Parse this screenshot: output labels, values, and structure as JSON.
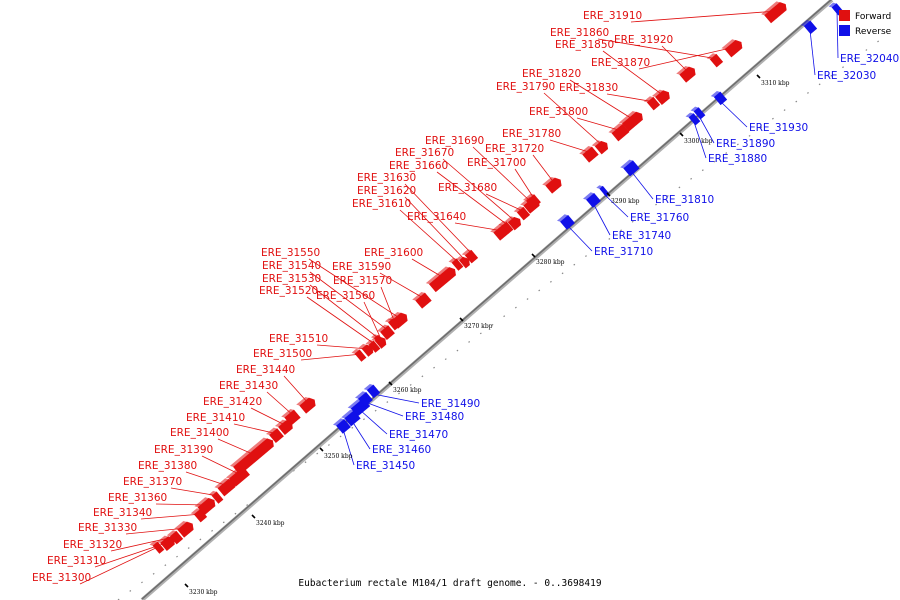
{
  "colors": {
    "forward": "#e01010",
    "reverse": "#1010e8"
  },
  "legend": {
    "forward_label": "Forward",
    "reverse_label": "Reverse"
  },
  "caption": "Eubacterium rectale M104/1 draft genome. - 0..3698419",
  "ticks": [
    "3230 kbp",
    "3240 kbp",
    "3250 kbp",
    "3260 kbp",
    "3270 kbp",
    "3280 kbp",
    "3290 kbp",
    "3300 kbp",
    "3310 kbp"
  ],
  "forward_genes": [
    "ERE_31300",
    "ERE_31310",
    "ERE_31320",
    "ERE_31330",
    "ERE_31340",
    "ERE_31360",
    "ERE_31370",
    "ERE_31380",
    "ERE_31390",
    "ERE_31400",
    "ERE_31410",
    "ERE_31420",
    "ERE_31430",
    "ERE_31440",
    "ERE_31500",
    "ERE_31510",
    "ERE_31520",
    "ERE_31530",
    "ERE_31540",
    "ERE_31550",
    "ERE_31560",
    "ERE_31570",
    "ERE_31590",
    "ERE_31600",
    "ERE_31610",
    "ERE_31620",
    "ERE_31630",
    "ERE_31640",
    "ERE_31660",
    "ERE_31670",
    "ERE_31680",
    "ERE_31690",
    "ERE_31700",
    "ERE_31720",
    "ERE_31780",
    "ERE_31790",
    "ERE_31800",
    "ERE_31820",
    "ERE_31830",
    "ERE_31850",
    "ERE_31860",
    "ERE_31870",
    "ERE_31910",
    "ERE_31920"
  ],
  "reverse_genes": [
    "ERE_31450",
    "ERE_31460",
    "ERE_31470",
    "ERE_31480",
    "ERE_31490",
    "ERE_31710",
    "ERE_31740",
    "ERE_31760",
    "ERE_31810",
    "ERE_31880",
    "ERE_31890",
    "ERE_31930",
    "ERE_32030",
    "ERE_32040"
  ]
}
